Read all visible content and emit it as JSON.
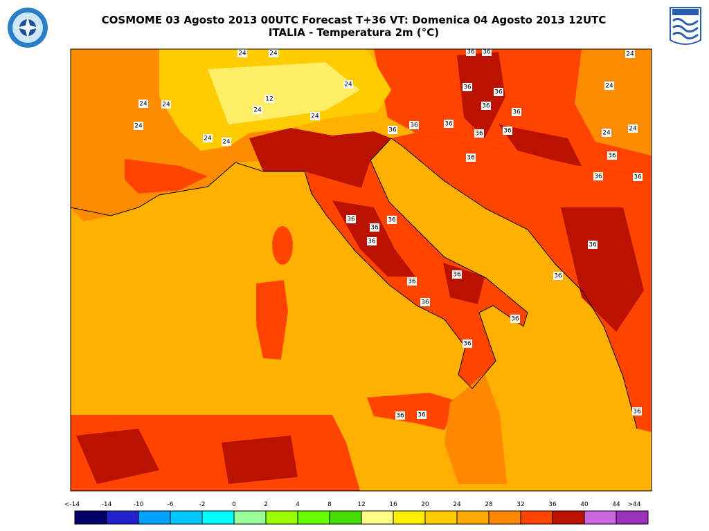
{
  "header": {
    "title": "COSMOME 03 Agosto 2013 00UTC Forecast T+36 VT: Domenica 04 Agosto 2013 12UTC",
    "subtitle": "ITALIA - Temperatura 2m (°C)"
  },
  "colorbar": {
    "labels": [
      "<-14",
      "-14",
      "-10",
      "-6",
      "-2",
      "0",
      "2",
      "4",
      "8",
      "12",
      "16",
      "20",
      "24",
      "28",
      "32",
      "36",
      "40",
      "44",
      ">44"
    ],
    "colors": [
      "#000066",
      "#2222cc",
      "#00a0ff",
      "#00c8ff",
      "#00ffff",
      "#99ff99",
      "#99ff00",
      "#66ff00",
      "#44dd00",
      "#ffff88",
      "#ffee00",
      "#ffcc00",
      "#ffaa00",
      "#ff8800",
      "#ff4400",
      "#bb1100",
      "#cc66dd",
      "#9933bb"
    ]
  },
  "map": {
    "contour_labels": [
      "24",
      "24",
      "24",
      "24",
      "24",
      "24",
      "24",
      "12",
      "24",
      "24",
      "24",
      "24",
      "24",
      "24",
      "24",
      "36",
      "36",
      "36",
      "36",
      "36",
      "36",
      "36",
      "36",
      "36",
      "36",
      "36",
      "36",
      "36",
      "36",
      "36",
      "36",
      "36",
      "36",
      "36",
      "36",
      "36",
      "36",
      "36",
      "36",
      "36",
      "36",
      "36",
      "36",
      "36"
    ]
  }
}
